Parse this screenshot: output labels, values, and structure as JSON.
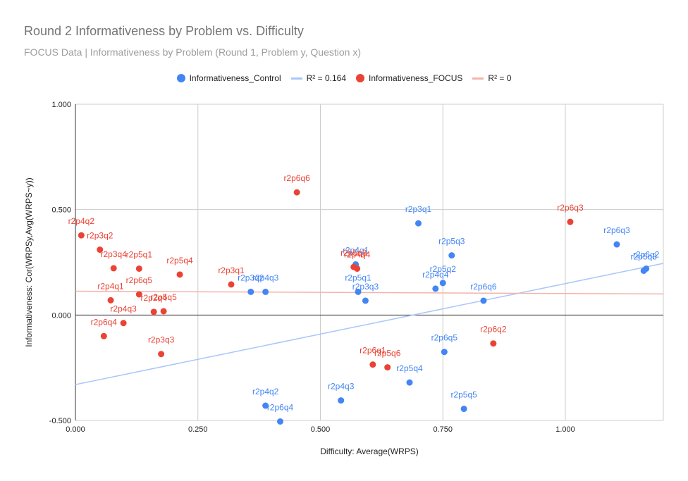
{
  "chart_data": {
    "type": "scatter",
    "title": "Round 2 Informativeness by Problem vs. Difficulty",
    "subtitle": "FOCUS Data | Informativeness by Problem (Round 1, Problem y, Question x)",
    "xlabel": "Difficulty: Average(WRPS)",
    "ylabel": "Informativeness: Cor(WRPSy,Avg(WRPS~y))",
    "xlim": [
      0,
      1.2
    ],
    "ylim": [
      -0.5,
      1.0
    ],
    "x_ticks": [
      "0.000",
      "0.250",
      "0.500",
      "0.750",
      "1.000"
    ],
    "y_ticks": [
      "-0.500",
      "0.000",
      "0.500",
      "1.000"
    ],
    "grid": true,
    "legend_position": "top",
    "legend": [
      {
        "label": "Informativeness_Control",
        "kind": "dot",
        "color": "#4285f4"
      },
      {
        "label": "R² = 0.164",
        "kind": "line",
        "color": "#a8c7fa"
      },
      {
        "label": "Informativeness_FOCUS",
        "kind": "dot",
        "color": "#ea4335"
      },
      {
        "label": "R² = 0",
        "kind": "line",
        "color": "#f4b3ab"
      }
    ],
    "series": [
      {
        "name": "Informativeness_Control",
        "color": "#4285f4",
        "points": [
          {
            "label": "r2p6q2",
            "x": 1.165,
            "y": 0.22
          },
          {
            "label": "r2p5q3",
            "x": 1.16,
            "y": 0.21
          },
          {
            "label": "r2p6q3",
            "x": 1.105,
            "y": 0.335
          },
          {
            "label": "r2p3q1",
            "x": 0.7,
            "y": 0.435
          },
          {
            "label": "r2p5q3",
            "x": 0.768,
            "y": 0.283
          },
          {
            "label": "r2p5q2",
            "x": 0.75,
            "y": 0.152
          },
          {
            "label": "r2p4q4",
            "x": 0.735,
            "y": 0.125
          },
          {
            "label": "r2p6q6",
            "x": 0.833,
            "y": 0.068
          },
          {
            "label": "r2p4q1",
            "x": 0.572,
            "y": 0.24
          },
          {
            "label": "r2p5q1",
            "x": 0.577,
            "y": 0.11
          },
          {
            "label": "r2p3q3",
            "x": 0.592,
            "y": 0.068
          },
          {
            "label": "r2p3q2",
            "x": 0.358,
            "y": 0.11
          },
          {
            "label": "r2p4q3",
            "x": 0.388,
            "y": 0.11
          },
          {
            "label": "r2p6q5",
            "x": 0.753,
            "y": -0.175
          },
          {
            "label": "r2p5q4",
            "x": 0.682,
            "y": -0.32
          },
          {
            "label": "r2p5q5",
            "x": 0.793,
            "y": -0.445
          },
          {
            "label": "r2p4q3",
            "x": 0.542,
            "y": -0.405
          },
          {
            "label": "r2p4q2",
            "x": 0.388,
            "y": -0.43
          },
          {
            "label": "r2p6q4",
            "x": 0.418,
            "y": -0.505
          }
        ]
      },
      {
        "name": "Informativeness_FOCUS",
        "color": "#ea4335",
        "points": [
          {
            "label": "r2p4q2",
            "x": 0.012,
            "y": 0.378
          },
          {
            "label": "r2p3q2",
            "x": 0.05,
            "y": 0.31
          },
          {
            "label": "r2p3q4",
            "x": 0.078,
            "y": 0.222
          },
          {
            "label": "r2p5q1",
            "x": 0.13,
            "y": 0.22
          },
          {
            "label": "r2p5q4",
            "x": 0.213,
            "y": 0.192
          },
          {
            "label": "r2p6q5",
            "x": 0.13,
            "y": 0.098
          },
          {
            "label": "r2p4q1",
            "x": 0.072,
            "y": 0.07
          },
          {
            "label": "r2p2q4",
            "x": 0.16,
            "y": 0.015
          },
          {
            "label": "r2p5q5",
            "x": 0.18,
            "y": 0.018
          },
          {
            "label": "r2p4q3",
            "x": 0.098,
            "y": -0.038
          },
          {
            "label": "r2p6q4",
            "x": 0.058,
            "y": -0.1
          },
          {
            "label": "r2p3q3",
            "x": 0.175,
            "y": -0.185
          },
          {
            "label": "r2p3q1",
            "x": 0.318,
            "y": 0.145
          },
          {
            "label": "r2p6q6",
            "x": 0.452,
            "y": 0.582
          },
          {
            "label": "r2p5q3",
            "x": 0.568,
            "y": 0.228
          },
          {
            "label": "r2p4q4",
            "x": 0.575,
            "y": 0.22
          },
          {
            "label": "r2p6q1",
            "x": 0.607,
            "y": -0.235
          },
          {
            "label": "r2p5q6",
            "x": 0.637,
            "y": -0.248
          },
          {
            "label": "r2p6q3",
            "x": 1.01,
            "y": 0.442
          },
          {
            "label": "r2p6q2",
            "x": 0.853,
            "y": -0.135
          }
        ]
      }
    ],
    "trendlines": [
      {
        "label": "R² = 0.164",
        "color": "#a8c7fa",
        "x": [
          0,
          1.2
        ],
        "y": [
          -0.33,
          0.245
        ]
      },
      {
        "label": "R² = 0",
        "color": "#f4b3ab",
        "x": [
          0,
          1.2
        ],
        "y": [
          0.113,
          0.1
        ]
      }
    ]
  }
}
